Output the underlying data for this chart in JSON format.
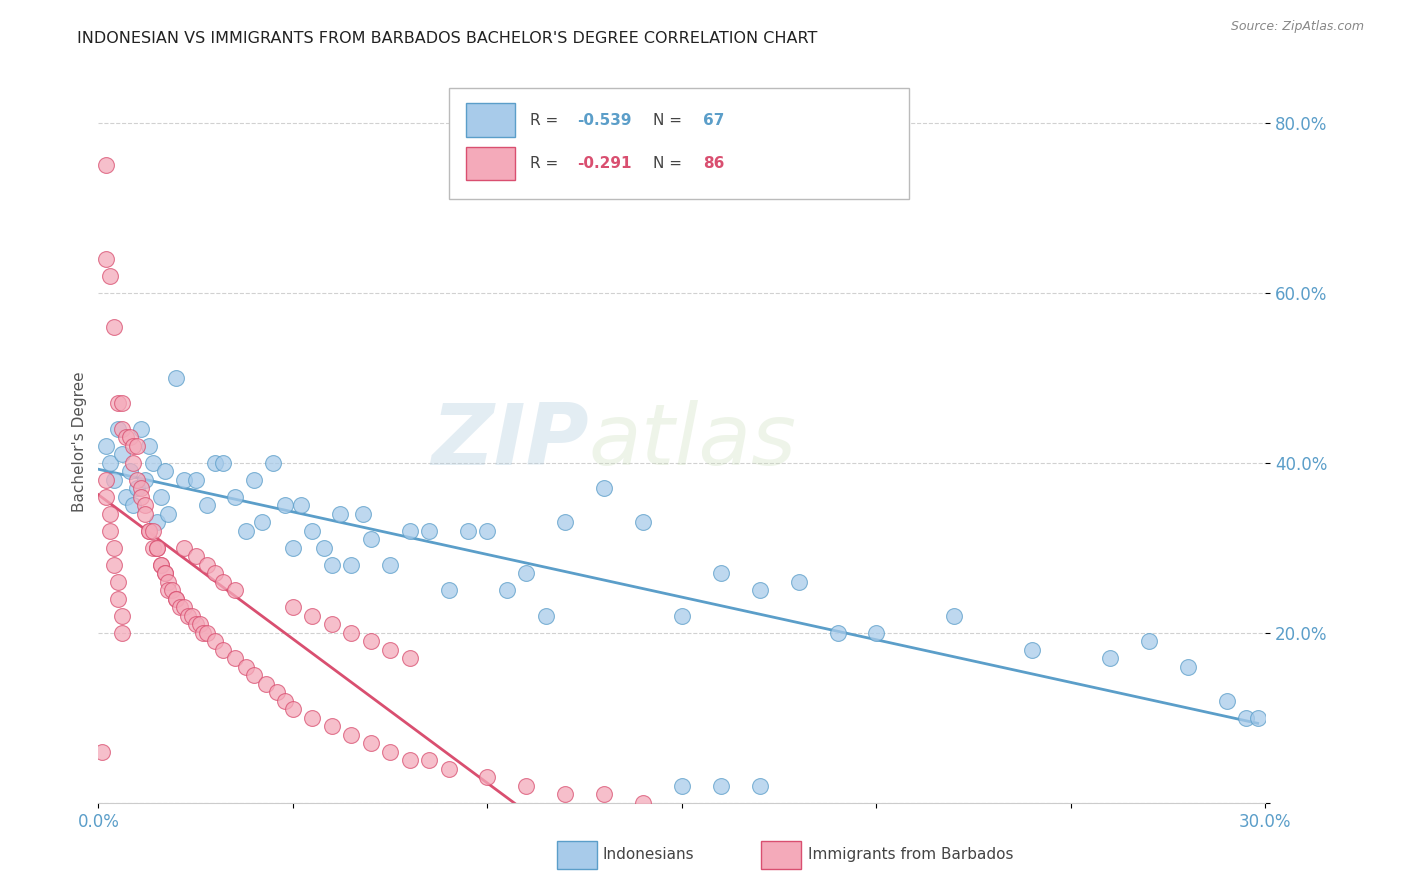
{
  "title": "INDONESIAN VS IMMIGRANTS FROM BARBADOS BACHELOR'S DEGREE CORRELATION CHART",
  "source": "Source: ZipAtlas.com",
  "ylabel": "Bachelor's Degree",
  "xlim": [
    0.0,
    0.3
  ],
  "ylim": [
    0.0,
    0.85
  ],
  "xticks": [
    0.0,
    0.05,
    0.1,
    0.15,
    0.2,
    0.25,
    0.3
  ],
  "xtick_labels": [
    "0.0%",
    "",
    "",
    "",
    "",
    "",
    "30.0%"
  ],
  "yticks": [
    0.0,
    0.2,
    0.4,
    0.6,
    0.8
  ],
  "ytick_labels": [
    "",
    "20.0%",
    "40.0%",
    "60.0%",
    "80.0%"
  ],
  "blue_R": -0.539,
  "blue_N": 67,
  "pink_R": -0.291,
  "pink_N": 86,
  "blue_color": "#A8CBEA",
  "blue_edge": "#5B9EC9",
  "pink_color": "#F4AABA",
  "pink_edge": "#D94F70",
  "blue_line": "#5B9EC9",
  "pink_line": "#D94F70",
  "legend_label_blue": "Indonesians",
  "legend_label_pink": "Immigrants from Barbados",
  "blue_x": [
    0.002,
    0.003,
    0.004,
    0.005,
    0.006,
    0.007,
    0.008,
    0.009,
    0.01,
    0.011,
    0.012,
    0.013,
    0.014,
    0.015,
    0.016,
    0.017,
    0.018,
    0.02,
    0.022,
    0.025,
    0.028,
    0.03,
    0.032,
    0.035,
    0.038,
    0.04,
    0.042,
    0.045,
    0.048,
    0.05,
    0.052,
    0.055,
    0.058,
    0.06,
    0.062,
    0.065,
    0.068,
    0.07,
    0.075,
    0.08,
    0.085,
    0.09,
    0.095,
    0.1,
    0.105,
    0.11,
    0.115,
    0.12,
    0.13,
    0.14,
    0.15,
    0.16,
    0.17,
    0.18,
    0.19,
    0.2,
    0.22,
    0.24,
    0.26,
    0.27,
    0.28,
    0.29,
    0.295,
    0.298,
    0.15,
    0.17,
    0.16
  ],
  "blue_y": [
    0.42,
    0.4,
    0.38,
    0.44,
    0.41,
    0.36,
    0.39,
    0.35,
    0.37,
    0.44,
    0.38,
    0.42,
    0.4,
    0.33,
    0.36,
    0.39,
    0.34,
    0.5,
    0.38,
    0.38,
    0.35,
    0.4,
    0.4,
    0.36,
    0.32,
    0.38,
    0.33,
    0.4,
    0.35,
    0.3,
    0.35,
    0.32,
    0.3,
    0.28,
    0.34,
    0.28,
    0.34,
    0.31,
    0.28,
    0.32,
    0.32,
    0.25,
    0.32,
    0.32,
    0.25,
    0.27,
    0.22,
    0.33,
    0.37,
    0.33,
    0.22,
    0.27,
    0.25,
    0.26,
    0.2,
    0.2,
    0.22,
    0.18,
    0.17,
    0.19,
    0.16,
    0.12,
    0.1,
    0.1,
    0.02,
    0.02,
    0.02
  ],
  "pink_x": [
    0.001,
    0.002,
    0.002,
    0.003,
    0.004,
    0.005,
    0.006,
    0.006,
    0.007,
    0.008,
    0.009,
    0.009,
    0.01,
    0.01,
    0.011,
    0.011,
    0.012,
    0.012,
    0.013,
    0.013,
    0.014,
    0.014,
    0.015,
    0.015,
    0.016,
    0.016,
    0.017,
    0.017,
    0.018,
    0.018,
    0.019,
    0.02,
    0.02,
    0.021,
    0.022,
    0.023,
    0.024,
    0.025,
    0.026,
    0.027,
    0.028,
    0.03,
    0.032,
    0.035,
    0.038,
    0.04,
    0.043,
    0.046,
    0.048,
    0.05,
    0.055,
    0.06,
    0.065,
    0.07,
    0.075,
    0.08,
    0.085,
    0.09,
    0.1,
    0.11,
    0.12,
    0.13,
    0.14,
    0.05,
    0.055,
    0.06,
    0.065,
    0.07,
    0.075,
    0.08,
    0.022,
    0.025,
    0.028,
    0.03,
    0.032,
    0.035,
    0.002,
    0.002,
    0.003,
    0.003,
    0.004,
    0.004,
    0.005,
    0.005,
    0.006,
    0.006
  ],
  "pink_y": [
    0.06,
    0.75,
    0.64,
    0.62,
    0.56,
    0.47,
    0.47,
    0.44,
    0.43,
    0.43,
    0.42,
    0.4,
    0.42,
    0.38,
    0.37,
    0.36,
    0.35,
    0.34,
    0.32,
    0.32,
    0.3,
    0.32,
    0.3,
    0.3,
    0.28,
    0.28,
    0.27,
    0.27,
    0.26,
    0.25,
    0.25,
    0.24,
    0.24,
    0.23,
    0.23,
    0.22,
    0.22,
    0.21,
    0.21,
    0.2,
    0.2,
    0.19,
    0.18,
    0.17,
    0.16,
    0.15,
    0.14,
    0.13,
    0.12,
    0.11,
    0.1,
    0.09,
    0.08,
    0.07,
    0.06,
    0.05,
    0.05,
    0.04,
    0.03,
    0.02,
    0.01,
    0.01,
    0.0,
    0.23,
    0.22,
    0.21,
    0.2,
    0.19,
    0.18,
    0.17,
    0.3,
    0.29,
    0.28,
    0.27,
    0.26,
    0.25,
    0.38,
    0.36,
    0.34,
    0.32,
    0.3,
    0.28,
    0.26,
    0.24,
    0.22,
    0.2
  ]
}
